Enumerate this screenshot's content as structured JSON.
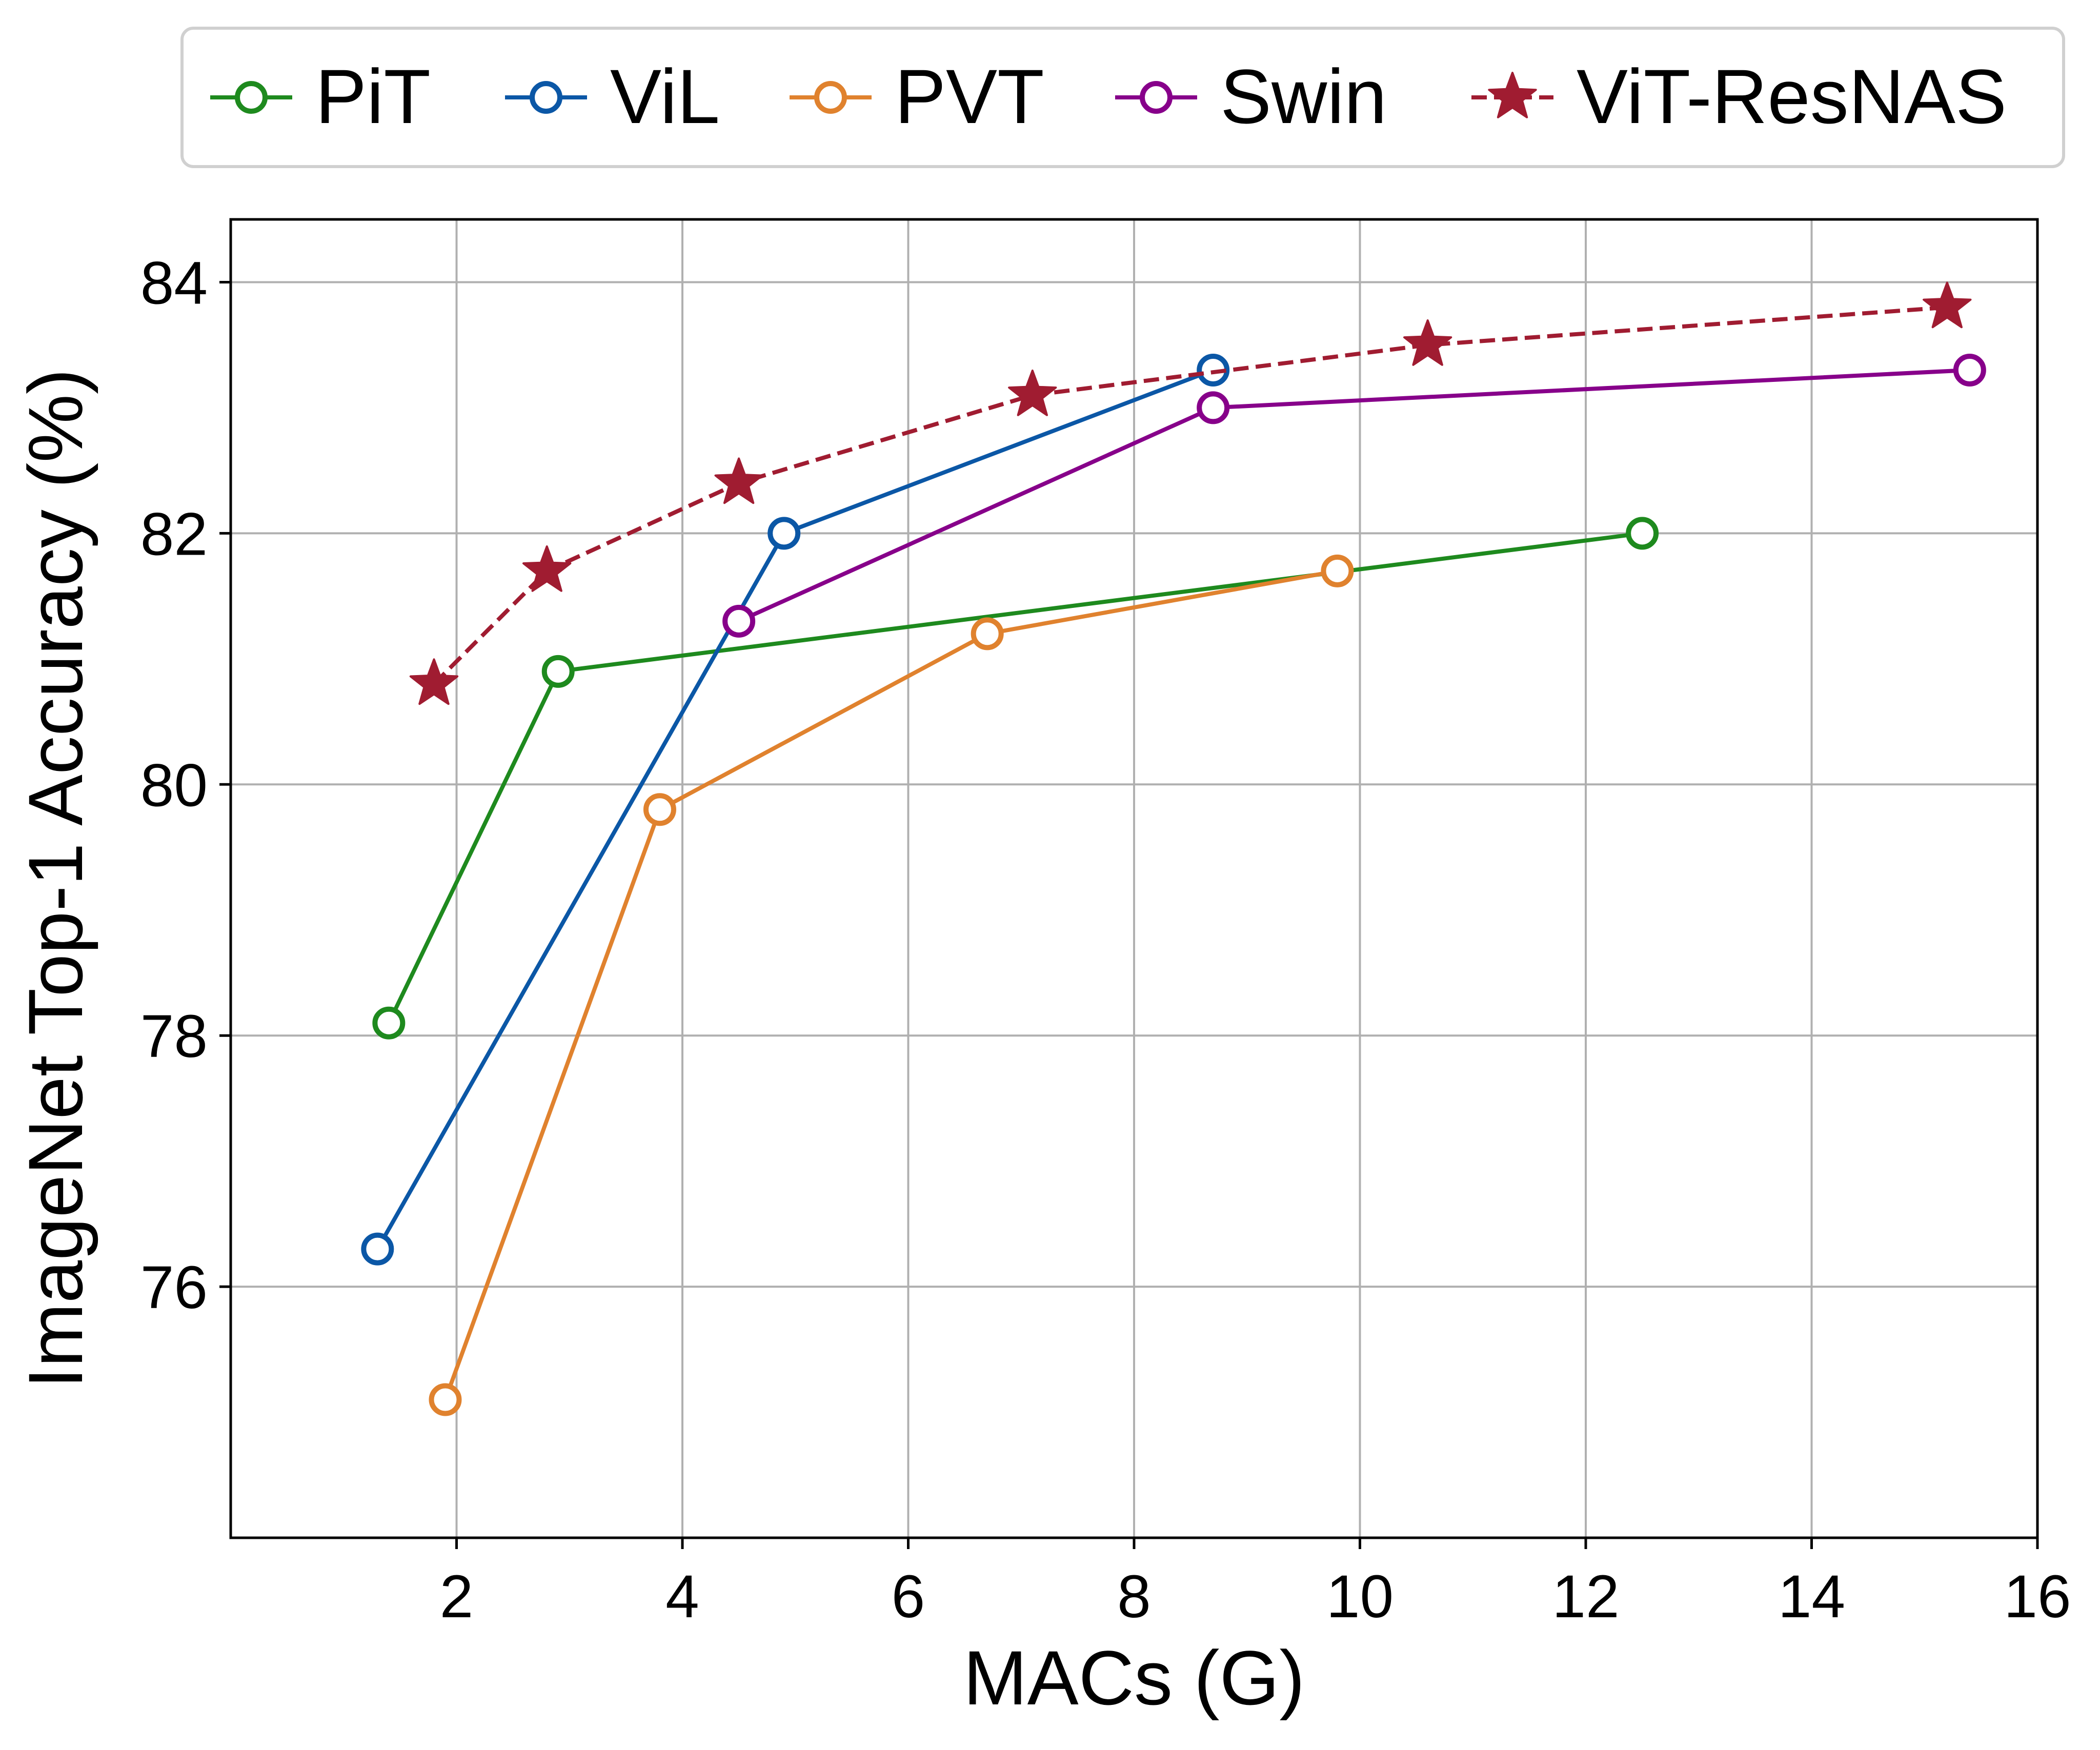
{
  "chart_data": {
    "type": "line",
    "title": "",
    "xlabel": "MACs (G)",
    "ylabel": "ImageNet Top-1 Accuracy (%)",
    "xlim": [
      0,
      16
    ],
    "ylim": [
      74,
      84.5
    ],
    "xticks": [
      2,
      4,
      6,
      8,
      10,
      12,
      14,
      16
    ],
    "yticks": [
      76,
      78,
      80,
      82,
      84
    ],
    "xtick_labels": [
      "2",
      "4",
      "6",
      "8",
      "10",
      "12",
      "14",
      "16"
    ],
    "ytick_labels": [
      "76",
      "78",
      "80",
      "82",
      "84"
    ],
    "grid": true,
    "legend_position": "top-center",
    "series": [
      {
        "name": "PiT",
        "color": "#1e8a1e",
        "marker": "open-circle",
        "linestyle": "solid",
        "x": [
          1.4,
          2.9,
          12.5
        ],
        "y": [
          78.1,
          80.9,
          82.0
        ]
      },
      {
        "name": "ViL",
        "color": "#0b57a6",
        "marker": "open-circle",
        "linestyle": "solid",
        "x": [
          1.3,
          4.9,
          8.7
        ],
        "y": [
          76.3,
          82.0,
          83.3
        ]
      },
      {
        "name": "PVT",
        "color": "#e0822e",
        "marker": "open-circle",
        "linestyle": "solid",
        "x": [
          1.9,
          3.8,
          6.7,
          9.8
        ],
        "y": [
          75.1,
          79.8,
          81.2,
          81.7
        ]
      },
      {
        "name": "Swin",
        "color": "#87008a",
        "marker": "open-circle",
        "linestyle": "solid",
        "x": [
          4.5,
          8.7,
          15.4
        ],
        "y": [
          81.3,
          83.0,
          83.3
        ]
      },
      {
        "name": "ViT-ResNAS",
        "color": "#a01c31",
        "marker": "filled-star",
        "linestyle": "dashed",
        "x": [
          1.8,
          2.8,
          4.5,
          7.1,
          10.6,
          15.2
        ],
        "y": [
          80.8,
          81.7,
          82.4,
          83.1,
          83.5,
          83.8
        ]
      }
    ]
  }
}
